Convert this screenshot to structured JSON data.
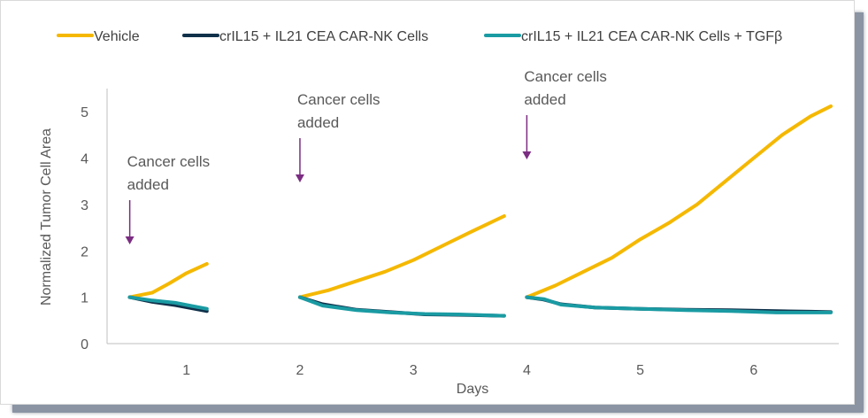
{
  "chart_data": {
    "type": "line",
    "title": "",
    "xlabel": "Days",
    "ylabel": "Normalized Tumor Cell Area",
    "ylim": [
      0,
      5.5
    ],
    "xlim": [
      0.3,
      6.75
    ],
    "x_ticks": [
      1,
      2,
      3,
      4,
      5,
      6
    ],
    "y_ticks": [
      0,
      1,
      2,
      3,
      4,
      5
    ],
    "grid": false,
    "legend_position": "top",
    "series": [
      {
        "name": "Vehicle",
        "color": "#f5b800",
        "segments": [
          [
            [
              0.5,
              1.0
            ],
            [
              0.7,
              1.1
            ],
            [
              0.85,
              1.3
            ],
            [
              1.0,
              1.52
            ],
            [
              1.18,
              1.72
            ]
          ],
          [
            [
              2.0,
              1.0
            ],
            [
              2.25,
              1.15
            ],
            [
              2.5,
              1.35
            ],
            [
              2.75,
              1.55
            ],
            [
              3.0,
              1.8
            ],
            [
              3.25,
              2.1
            ],
            [
              3.5,
              2.4
            ],
            [
              3.8,
              2.75
            ]
          ],
          [
            [
              4.0,
              1.0
            ],
            [
              4.25,
              1.25
            ],
            [
              4.5,
              1.55
            ],
            [
              4.75,
              1.85
            ],
            [
              5.0,
              2.25
            ],
            [
              5.25,
              2.6
            ],
            [
              5.5,
              3.0
            ],
            [
              5.75,
              3.5
            ],
            [
              6.0,
              4.0
            ],
            [
              6.25,
              4.5
            ],
            [
              6.5,
              4.9
            ],
            [
              6.68,
              5.12
            ]
          ]
        ]
      },
      {
        "name": "crIL15 + IL21 CEA CAR-NK Cells",
        "color": "#10304a",
        "segments": [
          [
            [
              0.5,
              1.0
            ],
            [
              0.7,
              0.9
            ],
            [
              0.9,
              0.83
            ],
            [
              1.05,
              0.76
            ],
            [
              1.18,
              0.7
            ]
          ],
          [
            [
              2.0,
              1.0
            ],
            [
              2.2,
              0.85
            ],
            [
              2.5,
              0.73
            ],
            [
              2.8,
              0.68
            ],
            [
              3.1,
              0.63
            ],
            [
              3.4,
              0.62
            ],
            [
              3.8,
              0.6
            ]
          ],
          [
            [
              4.0,
              1.0
            ],
            [
              4.15,
              0.95
            ],
            [
              4.3,
              0.85
            ],
            [
              4.6,
              0.78
            ],
            [
              5.0,
              0.75
            ],
            [
              5.4,
              0.73
            ],
            [
              5.8,
              0.72
            ],
            [
              6.2,
              0.7
            ],
            [
              6.5,
              0.69
            ],
            [
              6.68,
              0.68
            ]
          ]
        ]
      },
      {
        "name": "crIL15 + IL21 CEA CAR-NK Cells + TGFβ",
        "color": "#1a9ba3",
        "segments": [
          [
            [
              0.5,
              1.0
            ],
            [
              0.7,
              0.93
            ],
            [
              0.9,
              0.88
            ],
            [
              1.05,
              0.81
            ],
            [
              1.18,
              0.75
            ]
          ],
          [
            [
              2.0,
              1.0
            ],
            [
              2.2,
              0.82
            ],
            [
              2.5,
              0.72
            ],
            [
              2.8,
              0.67
            ],
            [
              3.1,
              0.64
            ],
            [
              3.4,
              0.63
            ],
            [
              3.8,
              0.6
            ]
          ],
          [
            [
              4.0,
              1.0
            ],
            [
              4.15,
              0.96
            ],
            [
              4.3,
              0.84
            ],
            [
              4.6,
              0.78
            ],
            [
              5.0,
              0.75
            ],
            [
              5.4,
              0.72
            ],
            [
              5.8,
              0.7
            ],
            [
              6.2,
              0.67
            ],
            [
              6.5,
              0.67
            ],
            [
              6.68,
              0.67
            ]
          ]
        ]
      }
    ],
    "annotations": [
      {
        "lines": [
          "Cancer cells",
          "added"
        ],
        "x": 0.5
      },
      {
        "lines": [
          "Cancer cells",
          "added"
        ],
        "x": 2.0
      },
      {
        "lines": [
          "Cancer cells",
          "added"
        ],
        "x": 4.0
      }
    ],
    "annotation_color": "#7b2d82"
  }
}
